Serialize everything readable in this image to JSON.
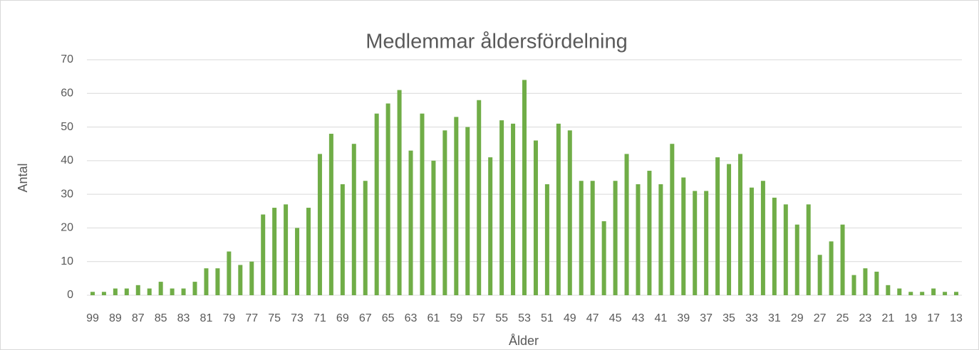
{
  "chart_data": {
    "type": "bar",
    "title": "Medlemmar åldersfördelning",
    "x_label": "Ålder",
    "y_label": "Antal",
    "categories": [
      "99",
      null,
      "89",
      null,
      "87",
      null,
      "85",
      null,
      "83",
      null,
      "81",
      null,
      "79",
      null,
      "77",
      null,
      "75",
      null,
      "73",
      null,
      "71",
      null,
      "69",
      null,
      "67",
      null,
      "65",
      null,
      "63",
      null,
      "61",
      null,
      "59",
      null,
      "57",
      null,
      "55",
      null,
      "53",
      null,
      "51",
      null,
      "49",
      null,
      "47",
      null,
      "45",
      null,
      "43",
      null,
      "41",
      null,
      "39",
      null,
      "37",
      null,
      "35",
      null,
      "33",
      null,
      "31",
      null,
      "29",
      null,
      "27",
      null,
      "25",
      null,
      "23",
      null,
      "21",
      null,
      "19",
      null,
      "17",
      null,
      "13"
    ],
    "values": [
      1,
      1,
      2,
      2,
      3,
      2,
      4,
      2,
      2,
      4,
      8,
      8,
      13,
      9,
      10,
      24,
      26,
      27,
      20,
      26,
      42,
      48,
      33,
      45,
      34,
      54,
      57,
      61,
      43,
      54,
      40,
      49,
      53,
      50,
      58,
      41,
      52,
      51,
      64,
      46,
      33,
      51,
      49,
      34,
      34,
      22,
      34,
      42,
      33,
      37,
      33,
      45,
      35,
      31,
      31,
      41,
      39,
      42,
      32,
      34,
      29,
      27,
      21,
      27,
      12,
      16,
      21,
      6,
      8,
      7,
      3,
      2,
      1,
      1,
      2,
      1,
      1
    ],
    "color": "#70ad47",
    "ylim": [
      0,
      70
    ],
    "yticks": [
      0,
      10,
      20,
      30,
      40,
      50,
      60,
      70
    ],
    "grid": true
  }
}
